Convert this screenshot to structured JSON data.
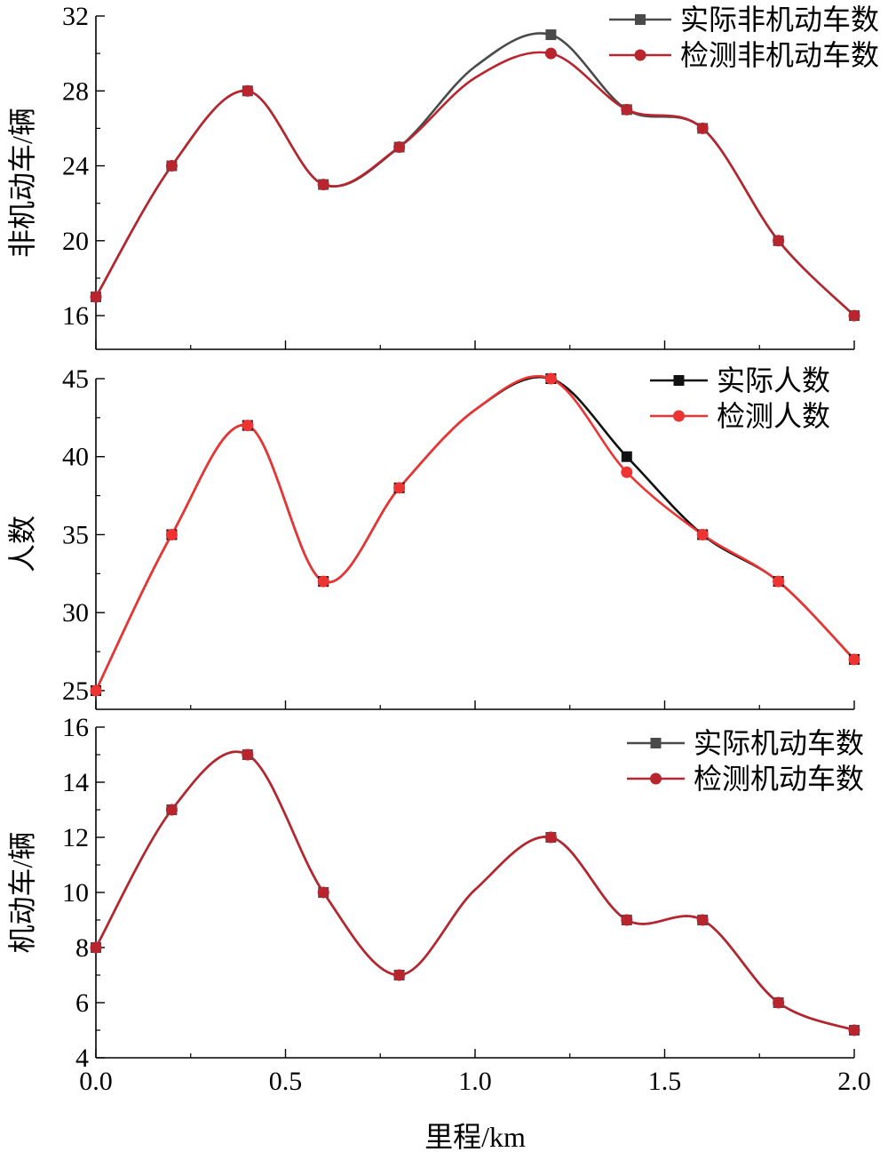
{
  "chart_data": [
    {
      "type": "line",
      "xlabel": "",
      "ylabel": "非机动车/辆",
      "xlim": [
        0,
        2.0
      ],
      "ylim": [
        14.2,
        32
      ],
      "yticks": [
        16,
        20,
        24,
        28,
        32
      ],
      "xticks": [
        0.0,
        0.5,
        1.0,
        1.5,
        2.0
      ],
      "show_x_tick_labels": false,
      "legend_position": "top-right",
      "x": [
        0.0,
        0.2,
        0.4,
        0.6,
        0.8,
        1.0,
        1.2,
        1.4,
        1.6,
        1.8,
        2.0
      ],
      "series": [
        {
          "name": "实际非机动车数",
          "color": "#4a4a4a",
          "marker": "square",
          "values": [
            17,
            24,
            28,
            23,
            25,
            null,
            31,
            27,
            26,
            20,
            16
          ]
        },
        {
          "name": "检测非机动车数",
          "color": "#b8252e",
          "marker": "circle",
          "values": [
            17,
            24,
            28,
            23,
            25,
            null,
            30,
            27,
            26,
            20,
            16
          ]
        }
      ]
    },
    {
      "type": "line",
      "xlabel": "",
      "ylabel": "人数",
      "xlim": [
        0,
        2.0
      ],
      "ylim": [
        23.8,
        45
      ],
      "yticks": [
        25,
        30,
        35,
        40,
        45
      ],
      "xticks": [
        0.0,
        0.5,
        1.0,
        1.5,
        2.0
      ],
      "show_x_tick_labels": false,
      "legend_position": "top-right",
      "x": [
        0.0,
        0.2,
        0.4,
        0.6,
        0.8,
        1.0,
        1.2,
        1.4,
        1.6,
        1.8,
        2.0
      ],
      "series": [
        {
          "name": "实际人数",
          "color": "#111111",
          "marker": "square",
          "values": [
            25,
            35,
            42,
            32,
            38,
            null,
            45,
            40,
            35,
            32,
            27
          ]
        },
        {
          "name": "检测人数",
          "color": "#ee3333",
          "marker": "circle",
          "values": [
            25,
            35,
            42,
            32,
            38,
            null,
            45,
            39,
            35,
            32,
            27
          ]
        }
      ]
    },
    {
      "type": "line",
      "xlabel": "里程/km",
      "ylabel": "机动车/辆",
      "xlim": [
        0,
        2.0
      ],
      "ylim": [
        4,
        16
      ],
      "yticks": [
        4,
        6,
        8,
        10,
        12,
        14,
        16
      ],
      "xticks": [
        0.0,
        0.5,
        1.0,
        1.5,
        2.0
      ],
      "show_x_tick_labels": true,
      "x_tick_labels": [
        "0.0",
        "0.5",
        "1.0",
        "1.5",
        "2.0"
      ],
      "legend_position": "top-right",
      "x": [
        0.0,
        0.2,
        0.4,
        0.6,
        0.8,
        1.0,
        1.2,
        1.4,
        1.6,
        1.8,
        2.0
      ],
      "series": [
        {
          "name": "实际机动车数",
          "color": "#4a4a4a",
          "marker": "square",
          "values": [
            8,
            13,
            15,
            10,
            7,
            null,
            12,
            9,
            9,
            6,
            5
          ]
        },
        {
          "name": "检测机动车数",
          "color": "#b8252e",
          "marker": "circle",
          "values": [
            8,
            13,
            15,
            10,
            7,
            null,
            12,
            9,
            9,
            6,
            5
          ]
        }
      ]
    }
  ]
}
